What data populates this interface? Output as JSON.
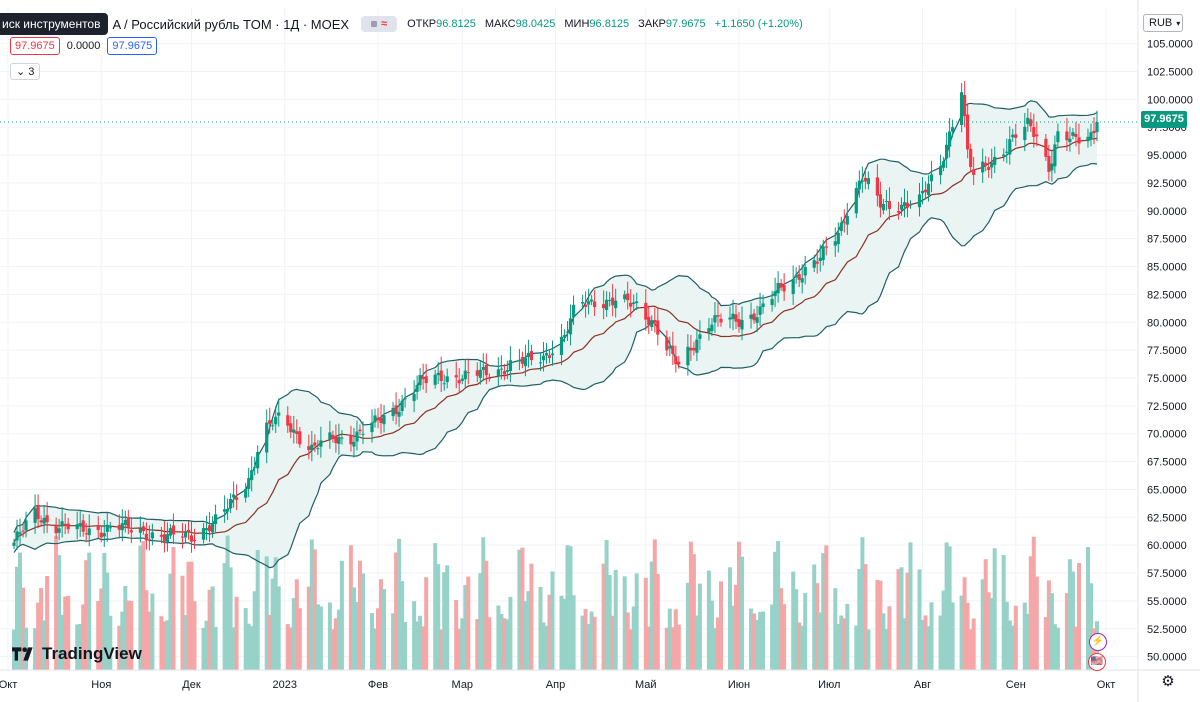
{
  "legend": {
    "search_label": "иск инструментов",
    "title": "A / Российский рубль TOM · 1Д · MOEX",
    "open_label": "ОТКР",
    "open": "96.8125",
    "high_label": "МАКС",
    "high": "98.0425",
    "low_label": "МИН",
    "low": "96.8125",
    "close_label": "ЗАКР",
    "close": "97.9675",
    "change": "+1.1650 (+1.20%)"
  },
  "price_boxes": {
    "bid": "97.9675",
    "spread": "0.0000",
    "ask": "97.9675"
  },
  "collapse_label": "3",
  "currency": "RUB",
  "last_price_label": "97.9675",
  "logo_text": "TradingView",
  "colors": {
    "up": "#089981",
    "down": "#f23645",
    "band_fill": "#e6f3f1",
    "band_line": "#1e5f66",
    "basis": "#8b2f22",
    "vol_up": "#97d2c9",
    "vol_down": "#f5a6a6"
  },
  "chart_data": {
    "type": "candlestick",
    "y_axis_labels": [
      "105.0000",
      "102.5000",
      "100.0000",
      "97.5000",
      "95.0000",
      "92.5000",
      "90.0000",
      "87.5000",
      "85.0000",
      "82.5000",
      "80.0000",
      "77.5000",
      "75.0000",
      "72.5000",
      "70.0000",
      "67.5000",
      "65.0000",
      "62.5000",
      "60.0000",
      "57.5000",
      "55.0000",
      "52.5000",
      "50.0000"
    ],
    "ylim": [
      48.8,
      106.4
    ],
    "x_axis_labels": [
      "Окт",
      "Ноя",
      "Дек",
      "2023",
      "Фев",
      "Мар",
      "Апр",
      "Май",
      "Июн",
      "Июл",
      "Авг",
      "Сен",
      "Окт"
    ],
    "x_axis_label_dates": [
      "2022-10-01",
      "2022-11-01",
      "2022-12-01",
      "2023-01-01",
      "2023-02-01",
      "2023-03-01",
      "2023-04-01",
      "2023-05-01",
      "2023-06-01",
      "2023-07-01",
      "2023-08-01",
      "2023-09-01",
      "2023-10-01"
    ],
    "start_date": "2022-10-01",
    "end_date": "2023-09-28",
    "close_anchors": [
      [
        "2022-10-01",
        59.5
      ],
      [
        "2022-10-10",
        62.8
      ],
      [
        "2022-10-17",
        61.8
      ],
      [
        "2022-10-25",
        61.3
      ],
      [
        "2022-11-07",
        61.6
      ],
      [
        "2022-11-15",
        61.2
      ],
      [
        "2022-11-22",
        60.7
      ],
      [
        "2022-12-01",
        60.9
      ],
      [
        "2022-12-10",
        62.2
      ],
      [
        "2022-12-20",
        66.0
      ],
      [
        "2022-12-25",
        70.2
      ],
      [
        "2022-12-31",
        71.5
      ],
      [
        "2023-01-10",
        68.6
      ],
      [
        "2023-01-17",
        69.5
      ],
      [
        "2023-01-24",
        69.8
      ],
      [
        "2023-02-01",
        71.0
      ],
      [
        "2023-02-08",
        72.6
      ],
      [
        "2023-02-15",
        74.5
      ],
      [
        "2023-02-22",
        75.2
      ],
      [
        "2023-03-02",
        75.0
      ],
      [
        "2023-03-10",
        75.6
      ],
      [
        "2023-03-20",
        76.3
      ],
      [
        "2023-03-28",
        77.0
      ],
      [
        "2023-04-04",
        78.6
      ],
      [
        "2023-04-08",
        81.5
      ],
      [
        "2023-04-14",
        82.0
      ],
      [
        "2023-04-20",
        81.8
      ],
      [
        "2023-04-28",
        81.6
      ],
      [
        "2023-05-04",
        79.9
      ],
      [
        "2023-05-08",
        77.5
      ],
      [
        "2023-05-12",
        76.0
      ],
      [
        "2023-05-16",
        77.8
      ],
      [
        "2023-05-22",
        80.0
      ],
      [
        "2023-06-01",
        80.2
      ],
      [
        "2023-06-08",
        81.0
      ],
      [
        "2023-06-14",
        82.8
      ],
      [
        "2023-06-21",
        84.4
      ],
      [
        "2023-06-28",
        85.6
      ],
      [
        "2023-07-04",
        88.0
      ],
      [
        "2023-07-08",
        91.0
      ],
      [
        "2023-07-12",
        93.0
      ],
      [
        "2023-07-18",
        90.5
      ],
      [
        "2023-07-24",
        90.6
      ],
      [
        "2023-07-31",
        90.8
      ],
      [
        "2023-08-07",
        94.2
      ],
      [
        "2023-08-11",
        98.0
      ],
      [
        "2023-08-14",
        101.0
      ],
      [
        "2023-08-16",
        95.0
      ],
      [
        "2023-08-18",
        93.0
      ],
      [
        "2023-08-24",
        94.5
      ],
      [
        "2023-08-31",
        96.4
      ],
      [
        "2023-09-05",
        97.6
      ],
      [
        "2023-09-08",
        96.8
      ],
      [
        "2023-09-12",
        94.0
      ],
      [
        "2023-09-15",
        96.8
      ],
      [
        "2023-09-21",
        96.2
      ],
      [
        "2023-09-26",
        96.8
      ],
      [
        "2023-09-28",
        97.9675
      ]
    ],
    "volume_visible": true,
    "bollinger_bands": true,
    "last_price": 97.9675
  }
}
